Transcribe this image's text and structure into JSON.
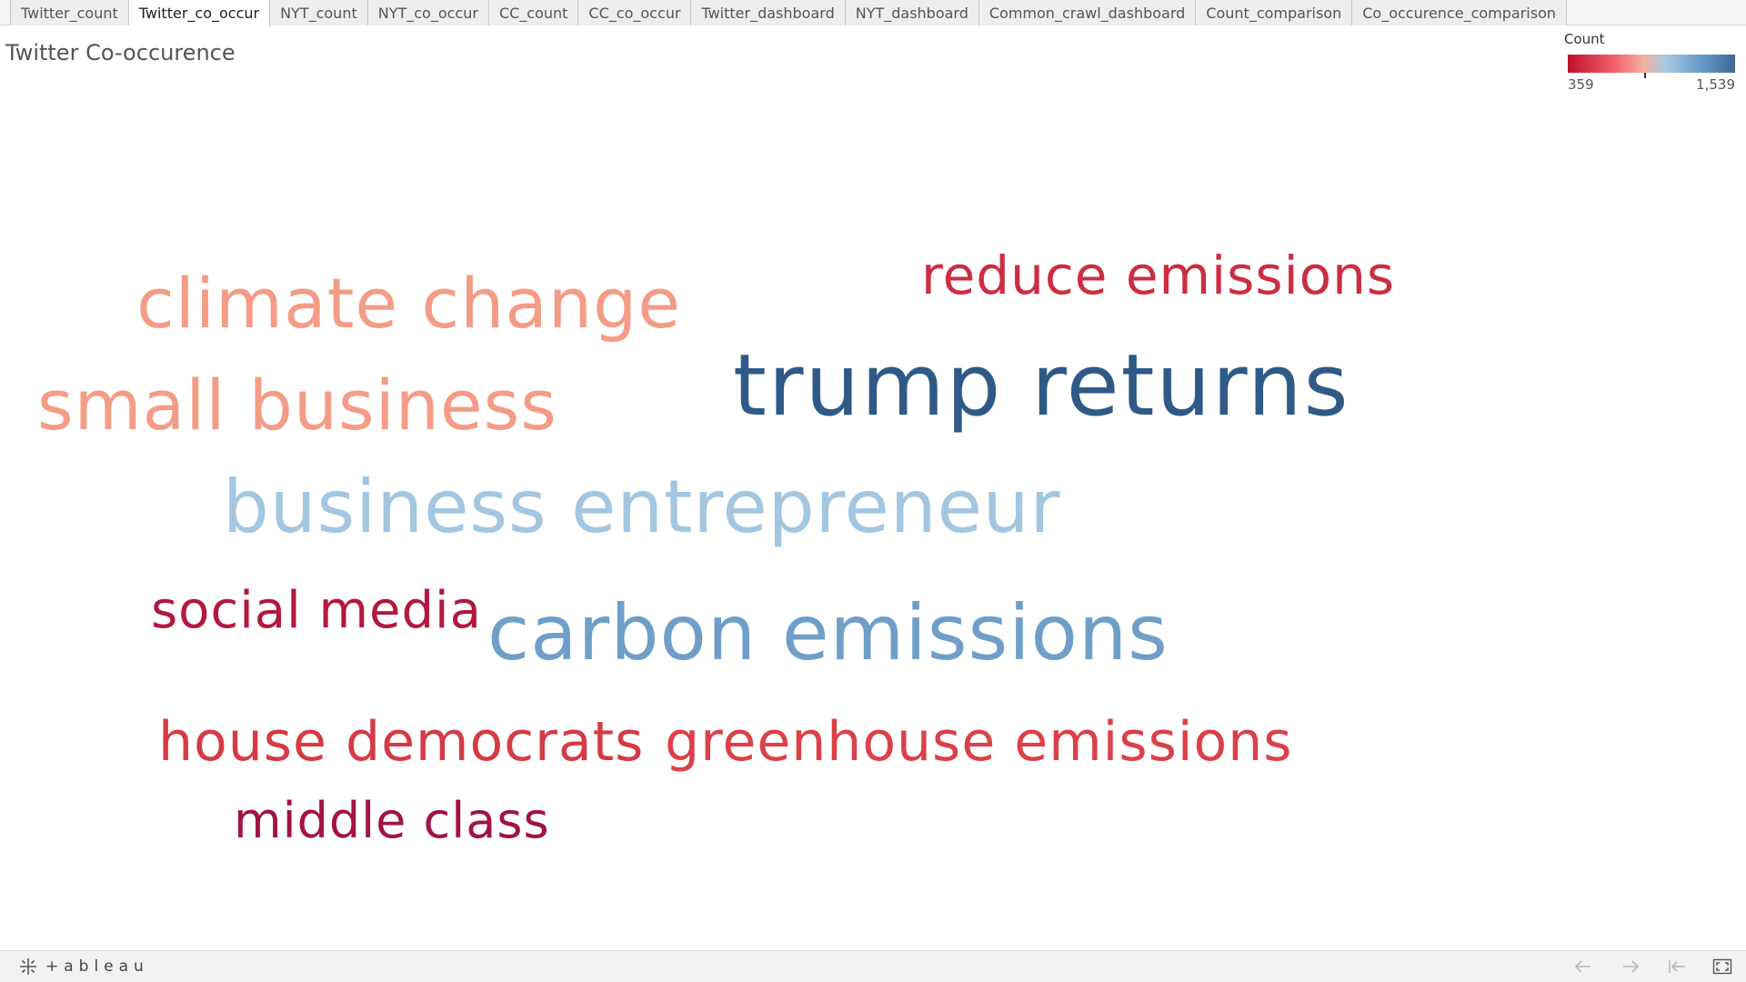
{
  "tabs": [
    {
      "label": "Twitter_count",
      "active": false
    },
    {
      "label": "Twitter_co_occur",
      "active": true
    },
    {
      "label": "NYT_count",
      "active": false
    },
    {
      "label": "NYT_co_occur",
      "active": false
    },
    {
      "label": "CC_count",
      "active": false
    },
    {
      "label": "CC_co_occur",
      "active": false
    },
    {
      "label": "Twitter_dashboard",
      "active": false
    },
    {
      "label": "NYT_dashboard",
      "active": false
    },
    {
      "label": "Common_crawl_dashboard",
      "active": false
    },
    {
      "label": "Count_comparison",
      "active": false
    },
    {
      "label": "Co_occurence_comparison",
      "active": false
    }
  ],
  "sheet": {
    "title": "Twitter Co-occurence"
  },
  "legend": {
    "title": "Count",
    "min_label": "359",
    "max_label": "1,539",
    "min_color": "#c1112d",
    "mid_color": "#f6b19c",
    "max_color": "#3e6996"
  },
  "words": [
    {
      "text": "trump returns",
      "color": "#2f5a87"
    },
    {
      "text": "carbon emissions",
      "color": "#6f9fc9"
    },
    {
      "text": "business entrepreneur",
      "color": "#a3c6e1"
    },
    {
      "text": "climate change",
      "color": "#f49c86"
    },
    {
      "text": "small business",
      "color": "#f49c86"
    },
    {
      "text": "reduce emissions",
      "color": "#cc2d42"
    },
    {
      "text": "greenhouse emissions",
      "color": "#dc4048"
    },
    {
      "text": "house democrats",
      "color": "#d43b45"
    },
    {
      "text": "social media",
      "color": "#b3183d"
    },
    {
      "text": "middle class",
      "color": "#a01443"
    }
  ],
  "toolbar": {
    "logo_text": "+ableau",
    "undo_icon": "arrow-left-icon",
    "redo_icon": "arrow-right-icon",
    "revert_icon": "revert-to-start-icon",
    "fullscreen_icon": "fullscreen-icon"
  }
}
